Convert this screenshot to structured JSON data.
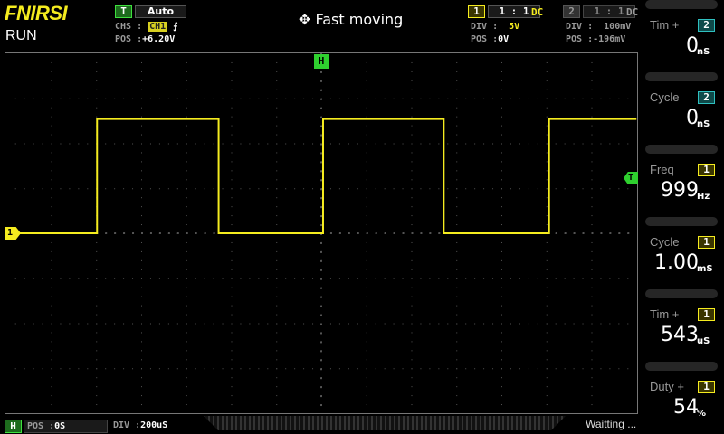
{
  "header": {
    "brand": "FNIRSI",
    "state": "RUN",
    "trigger_label": "T",
    "trigger_mode": "Auto",
    "chs_label": "CHS :",
    "chs_value": "CH1",
    "edge_icon": "rising-edge-icon",
    "edge_glyph": "⨍",
    "pos_label": "POS :",
    "pos_value": "+6.20V",
    "mode_icon": "move-arrows-icon",
    "mode_text": "Fast moving"
  },
  "ch1": {
    "num": "1",
    "ratio": "1 : 1",
    "coupling": "DC",
    "div_label": "DIV :",
    "div": "5V",
    "pos_label": "POS :",
    "pos": "0V",
    "color": "#f5ec1f"
  },
  "ch2": {
    "num": "2",
    "ratio": "1 : 1",
    "coupling": "DC",
    "div_label": "DIV :",
    "div": "100mV",
    "pos_label": "POS :",
    "pos": "-196mV",
    "color": "#2fc0c0"
  },
  "markers": {
    "h": "H",
    "t": "T",
    "ch1": "1"
  },
  "trace": {
    "unit_time": "us",
    "time_per_div": 200,
    "volts_per_div": 5,
    "high_v": 12.7,
    "low_v": 0,
    "edges_us": [
      -996,
      -456,
      8,
      544,
      1012
    ],
    "start_level": "low"
  },
  "measurements": [
    {
      "name": "Tim +",
      "ch": "2",
      "value": "0",
      "unit": "nS"
    },
    {
      "name": "Cycle",
      "ch": "2",
      "value": "0",
      "unit": "nS"
    },
    {
      "name": "Freq",
      "ch": "1",
      "value": "999",
      "unit": "Hz"
    },
    {
      "name": "Cycle",
      "ch": "1",
      "value": "1.00",
      "unit": "mS"
    },
    {
      "name": "Tim +",
      "ch": "1",
      "value": "543",
      "unit": "uS"
    },
    {
      "name": "Duty +",
      "ch": "1",
      "value": "54",
      "unit": "%"
    }
  ],
  "footer": {
    "h_label": "H",
    "pos_label": "POS :",
    "pos": "0S",
    "div_label": "DIV :",
    "div": "200uS",
    "status": "Waitting ..."
  }
}
